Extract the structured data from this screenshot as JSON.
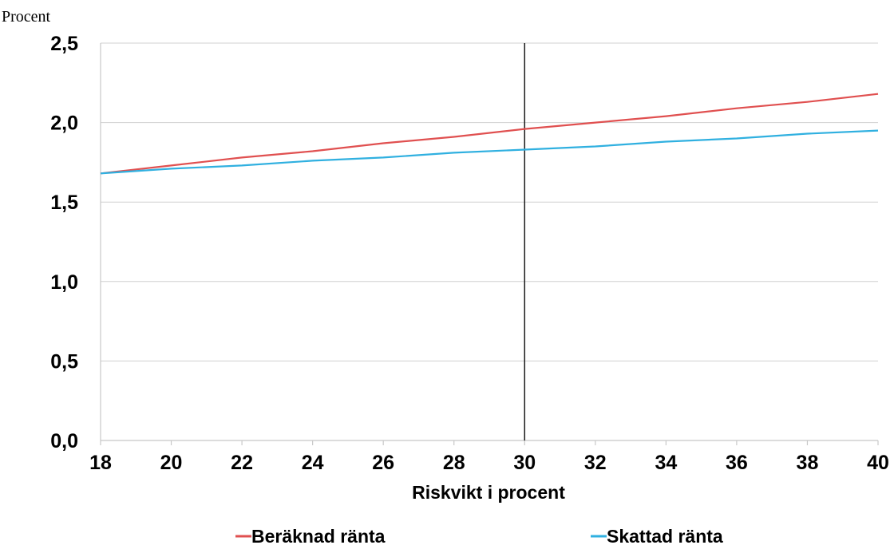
{
  "chart_data": {
    "type": "line",
    "title": "",
    "ylabel": "Procent",
    "xlabel": "Riskvikt i procent",
    "x": [
      18,
      20,
      22,
      24,
      26,
      28,
      30,
      32,
      34,
      36,
      38,
      40
    ],
    "xticks": [
      "18",
      "20",
      "22",
      "24",
      "26",
      "28",
      "30",
      "32",
      "34",
      "36",
      "38",
      "40"
    ],
    "xlim": [
      18,
      40
    ],
    "ylim": [
      0,
      2.5
    ],
    "yticks": [
      {
        "value": 0,
        "label": "0,0"
      },
      {
        "value": 0.5,
        "label": "0,5"
      },
      {
        "value": 1.0,
        "label": "1,0"
      },
      {
        "value": 1.5,
        "label": "1,5"
      },
      {
        "value": 2.0,
        "label": "2,0"
      },
      {
        "value": 2.5,
        "label": "2,5"
      }
    ],
    "grid": true,
    "reference_line_x": 30,
    "legend_position": "bottom",
    "series": [
      {
        "name": "Beräknad ränta",
        "color": "#e05050",
        "values": [
          1.68,
          1.73,
          1.78,
          1.82,
          1.87,
          1.91,
          1.96,
          2.0,
          2.04,
          2.09,
          2.13,
          2.18
        ]
      },
      {
        "name": "Skattad ränta",
        "color": "#30b0e0",
        "values": [
          1.68,
          1.71,
          1.73,
          1.76,
          1.78,
          1.81,
          1.83,
          1.85,
          1.88,
          1.9,
          1.93,
          1.95
        ]
      }
    ]
  }
}
